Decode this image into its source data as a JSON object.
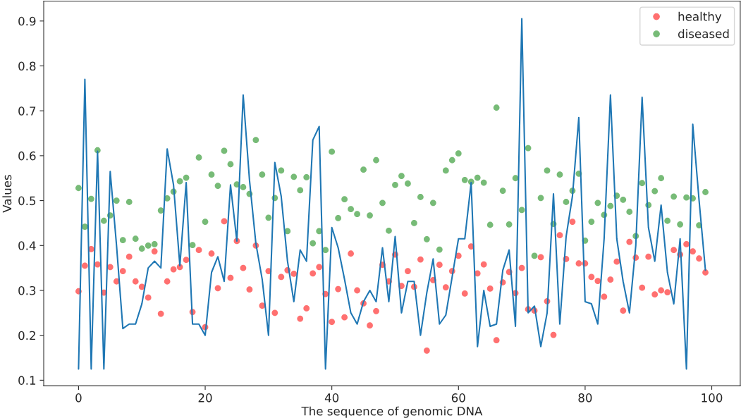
{
  "chart_data": {
    "type": "scatter",
    "xlabel": "The sequence of genomic DNA",
    "ylabel": "Values",
    "x": [
      0,
      1,
      2,
      3,
      4,
      5,
      6,
      7,
      8,
      9,
      10,
      11,
      12,
      13,
      14,
      15,
      16,
      17,
      18,
      19,
      20,
      21,
      22,
      23,
      24,
      25,
      26,
      27,
      28,
      29,
      30,
      31,
      32,
      33,
      34,
      35,
      36,
      37,
      38,
      39,
      40,
      41,
      42,
      43,
      44,
      45,
      46,
      47,
      48,
      49,
      50,
      51,
      52,
      53,
      54,
      55,
      56,
      57,
      58,
      59,
      60,
      61,
      62,
      63,
      64,
      65,
      66,
      67,
      68,
      69,
      70,
      71,
      72,
      73,
      74,
      75,
      76,
      77,
      78,
      79,
      80,
      81,
      82,
      83,
      84,
      85,
      86,
      87,
      88,
      89,
      90,
      91,
      92,
      93,
      94,
      95,
      96,
      97,
      98,
      99
    ],
    "xlim": [
      -5.5,
      104.5
    ],
    "xticks": [
      0,
      20,
      40,
      60,
      80,
      100
    ],
    "ylim": [
      0.0875,
      0.944
    ],
    "yticks": [
      0.1,
      0.2,
      0.3,
      0.4,
      0.5,
      0.6,
      0.7,
      0.8,
      0.9
    ],
    "grid": false,
    "legend": "top right",
    "marker": "circle",
    "series": [
      {
        "type": "line",
        "marker": "none",
        "color": "#1f77b4",
        "values": [
          0.125,
          0.77,
          0.125,
          0.61,
          0.125,
          0.565,
          0.4,
          0.215,
          0.225,
          0.225,
          0.27,
          0.35,
          0.365,
          0.35,
          0.615,
          0.535,
          0.355,
          0.54,
          0.225,
          0.225,
          0.2,
          0.34,
          0.375,
          0.32,
          0.535,
          0.41,
          0.735,
          0.545,
          0.405,
          0.325,
          0.2,
          0.585,
          0.51,
          0.365,
          0.275,
          0.39,
          0.365,
          0.635,
          0.665,
          0.125,
          0.44,
          0.395,
          0.325,
          0.25,
          0.225,
          0.275,
          0.3,
          0.275,
          0.395,
          0.275,
          0.42,
          0.25,
          0.32,
          0.32,
          0.2,
          0.295,
          0.37,
          0.225,
          0.245,
          0.33,
          0.415,
          0.415,
          0.54,
          0.175,
          0.3,
          0.22,
          0.225,
          0.345,
          0.39,
          0.22,
          0.905,
          0.25,
          0.265,
          0.175,
          0.25,
          0.515,
          0.225,
          0.42,
          0.51,
          0.685,
          0.275,
          0.27,
          0.225,
          0.415,
          0.735,
          0.415,
          0.32,
          0.25,
          0.4,
          0.73,
          0.44,
          0.365,
          0.49,
          0.34,
          0.27,
          0.415,
          0.125,
          0.67,
          0.5,
          0.345
        ]
      },
      {
        "name": "healthy",
        "color": "#ff7070",
        "values": [
          0.298,
          0.355,
          0.392,
          0.358,
          0.295,
          0.352,
          0.32,
          0.343,
          0.375,
          0.32,
          0.308,
          0.284,
          0.387,
          0.248,
          0.32,
          0.347,
          0.352,
          0.368,
          0.252,
          0.39,
          0.218,
          0.382,
          0.305,
          0.454,
          0.328,
          0.41,
          0.35,
          0.302,
          0.4,
          0.266,
          0.343,
          0.25,
          0.33,
          0.345,
          0.337,
          0.237,
          0.26,
          0.338,
          0.352,
          0.292,
          0.23,
          0.303,
          0.24,
          0.382,
          0.3,
          0.271,
          0.222,
          0.254,
          0.357,
          0.32,
          0.38,
          0.31,
          0.343,
          0.308,
          0.369,
          0.166,
          0.323,
          0.357,
          0.307,
          0.343,
          0.377,
          0.293,
          0.398,
          0.338,
          0.358,
          0.304,
          0.189,
          0.318,
          0.341,
          0.294,
          0.35,
          0.258,
          0.255,
          0.374,
          0.276,
          0.201,
          0.423,
          0.37,
          0.453,
          0.36,
          0.36,
          0.33,
          0.321,
          0.286,
          0.324,
          0.364,
          0.255,
          0.408,
          0.373,
          0.306,
          0.375,
          0.291,
          0.3,
          0.296,
          0.39,
          0.38,
          0.403,
          0.387,
          0.371,
          0.34
        ]
      },
      {
        "name": "diseased",
        "color": "#77bb77",
        "values": [
          0.528,
          0.442,
          0.504,
          0.612,
          0.455,
          0.467,
          0.5,
          0.412,
          0.497,
          0.415,
          0.393,
          0.4,
          0.403,
          0.478,
          0.505,
          0.52,
          0.543,
          0.551,
          0.401,
          0.596,
          0.453,
          0.558,
          0.533,
          0.611,
          0.581,
          0.536,
          0.53,
          0.515,
          0.635,
          0.558,
          0.462,
          0.506,
          0.567,
          0.432,
          0.553,
          0.523,
          0.552,
          0.405,
          0.432,
          0.39,
          0.609,
          0.461,
          0.503,
          0.481,
          0.47,
          0.569,
          0.467,
          0.59,
          0.495,
          0.433,
          0.535,
          0.555,
          0.538,
          0.45,
          0.508,
          0.414,
          0.495,
          0.391,
          0.567,
          0.59,
          0.605,
          0.546,
          0.542,
          0.551,
          0.54,
          0.446,
          0.707,
          0.522,
          0.447,
          0.55,
          0.479,
          0.617,
          0.377,
          0.506,
          0.567,
          0.448,
          0.558,
          0.497,
          0.522,
          0.56,
          0.411,
          0.453,
          0.495,
          0.468,
          0.488,
          0.511,
          0.502,
          0.475,
          0.421,
          0.539,
          0.49,
          0.521,
          0.55,
          0.455,
          0.509,
          0.447,
          0.507,
          0.505,
          0.445,
          0.519
        ]
      }
    ]
  }
}
